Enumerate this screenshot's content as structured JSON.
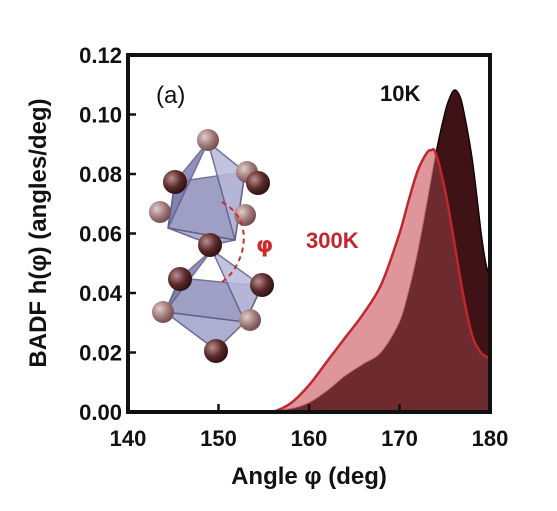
{
  "chart_data": {
    "type": "area",
    "panel_label": "(a)",
    "xlabel": "Angle φ (deg)",
    "ylabel": "BADF h(φ) (angles/deg)",
    "xlim": [
      140,
      180
    ],
    "ylim": [
      0.0,
      0.12
    ],
    "xticks": [
      "140",
      "150",
      "160",
      "170",
      "180"
    ],
    "yticks": [
      "0.00",
      "0.02",
      "0.04",
      "0.06",
      "0.08",
      "0.10",
      "0.12"
    ],
    "grid": false,
    "inset_angle_label": "φ",
    "series": [
      {
        "name": "10K",
        "color": "#151515",
        "x": [
          155,
          158,
          160,
          162,
          164,
          166,
          168,
          170,
          171,
          172,
          173,
          174,
          175,
          175.5,
          176,
          176.5,
          177,
          178,
          179,
          179.5,
          180
        ],
        "values": [
          0.0,
          0.001,
          0.003,
          0.007,
          0.012,
          0.016,
          0.02,
          0.03,
          0.04,
          0.053,
          0.069,
          0.086,
          0.1,
          0.105,
          0.108,
          0.107,
          0.102,
          0.085,
          0.06,
          0.05,
          0.045
        ]
      },
      {
        "name": "300K",
        "color": "#c0262c",
        "x": [
          155,
          156,
          158,
          160,
          162,
          164,
          166,
          168,
          170,
          171,
          172,
          173,
          173.5,
          174,
          175,
          176,
          177,
          178,
          179,
          180
        ],
        "values": [
          0.0,
          0.0,
          0.003,
          0.009,
          0.017,
          0.025,
          0.033,
          0.043,
          0.06,
          0.071,
          0.081,
          0.087,
          0.088,
          0.087,
          0.075,
          0.058,
          0.04,
          0.026,
          0.02,
          0.018
        ]
      }
    ]
  }
}
